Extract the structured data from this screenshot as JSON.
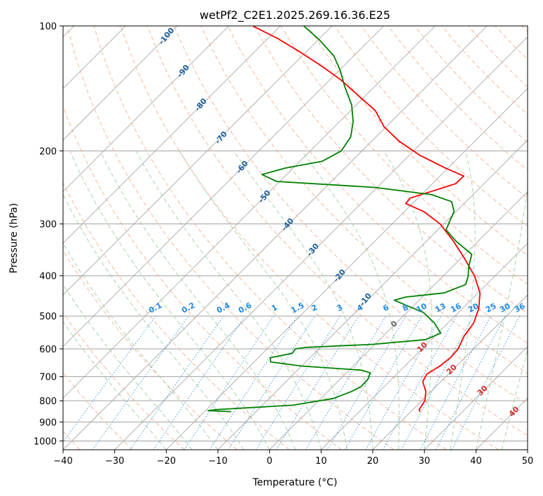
{
  "chart_data": {
    "type": "line",
    "title": "wetPf2_C2E1.2025.269.16.36.E25",
    "xlabel": "Temperature (°C)",
    "ylabel": "Pressure (hPa)",
    "xlim": [
      -40,
      50
    ],
    "ylim": [
      1050,
      100
    ],
    "y_scale": "log",
    "grid": true,
    "x_ticks": [
      -40,
      -30,
      -20,
      -10,
      0,
      10,
      20,
      30,
      40,
      50
    ],
    "y_ticks": [
      100,
      200,
      300,
      400,
      500,
      600,
      700,
      800,
      900,
      1000
    ],
    "series": [
      {
        "color": "#ff0000",
        "points": [
          {
            "p": 850,
            "t": 21.8
          },
          {
            "p": 840,
            "t": 21.2
          },
          {
            "p": 800,
            "t": 20.6
          },
          {
            "p": 760,
            "t": 19.0
          },
          {
            "p": 720,
            "t": 16.5
          },
          {
            "p": 690,
            "t": 15.8
          },
          {
            "p": 660,
            "t": 16.8
          },
          {
            "p": 630,
            "t": 17.2
          },
          {
            "p": 600,
            "t": 17.0
          },
          {
            "p": 560,
            "t": 15.7
          },
          {
            "p": 520,
            "t": 15.0
          },
          {
            "p": 480,
            "t": 13.2
          },
          {
            "p": 440,
            "t": 10.4
          },
          {
            "p": 400,
            "t": 6.0
          },
          {
            "p": 360,
            "t": 0.2
          },
          {
            "p": 330,
            "t": -4.8
          },
          {
            "p": 300,
            "t": -10.7
          },
          {
            "p": 280,
            "t": -16.3
          },
          {
            "p": 268,
            "t": -21.3
          },
          {
            "p": 260,
            "t": -21.5
          },
          {
            "p": 250,
            "t": -18.6
          },
          {
            "p": 240,
            "t": -15.5
          },
          {
            "p": 230,
            "t": -15.4
          },
          {
            "p": 220,
            "t": -20.5
          },
          {
            "p": 205,
            "t": -27.9
          },
          {
            "p": 190,
            "t": -34.5
          },
          {
            "p": 175,
            "t": -40.4
          },
          {
            "p": 160,
            "t": -45.2
          },
          {
            "p": 148,
            "t": -51.0
          },
          {
            "p": 135,
            "t": -57.8
          },
          {
            "p": 125,
            "t": -64.2
          },
          {
            "p": 115,
            "t": -71.6
          },
          {
            "p": 107,
            "t": -78.3
          },
          {
            "p": 100,
            "t": -85.4
          }
        ]
      },
      {
        "color": "#008000",
        "points": [
          {
            "p": 850,
            "t": -14.8
          },
          {
            "p": 845,
            "t": -19.5
          },
          {
            "p": 840,
            "t": -18.0
          },
          {
            "p": 820,
            "t": -4.1
          },
          {
            "p": 790,
            "t": 2.4
          },
          {
            "p": 760,
            "t": 4.6
          },
          {
            "p": 740,
            "t": 5.5
          },
          {
            "p": 710,
            "t": 5.4
          },
          {
            "p": 685,
            "t": 4.6
          },
          {
            "p": 675,
            "t": 2.3
          },
          {
            "p": 660,
            "t": -10.0
          },
          {
            "p": 645,
            "t": -16.8
          },
          {
            "p": 630,
            "t": -17.7
          },
          {
            "p": 615,
            "t": -14.3
          },
          {
            "p": 600,
            "t": -14.5
          },
          {
            "p": 595,
            "t": -12.8
          },
          {
            "p": 585,
            "t": -0.4
          },
          {
            "p": 570,
            "t": 8.9
          },
          {
            "p": 550,
            "t": 10.6
          },
          {
            "p": 520,
            "t": 7.4
          },
          {
            "p": 490,
            "t": 3.2
          },
          {
            "p": 470,
            "t": -1.8
          },
          {
            "p": 458,
            "t": -4.8
          },
          {
            "p": 450,
            "t": -3.2
          },
          {
            "p": 440,
            "t": 3.4
          },
          {
            "p": 420,
            "t": 6.0
          },
          {
            "p": 400,
            "t": 4.8
          },
          {
            "p": 380,
            "t": 3.1
          },
          {
            "p": 355,
            "t": 1.3
          },
          {
            "p": 330,
            "t": -4.3
          },
          {
            "p": 310,
            "t": -8.4
          },
          {
            "p": 295,
            "t": -9.4
          },
          {
            "p": 280,
            "t": -10.4
          },
          {
            "p": 265,
            "t": -12.8
          },
          {
            "p": 255,
            "t": -18.0
          },
          {
            "p": 245,
            "t": -30.3
          },
          {
            "p": 237,
            "t": -50.6
          },
          {
            "p": 228,
            "t": -54.8
          },
          {
            "p": 220,
            "t": -51.5
          },
          {
            "p": 212,
            "t": -45.7
          },
          {
            "p": 200,
            "t": -44.0
          },
          {
            "p": 185,
            "t": -44.9
          },
          {
            "p": 170,
            "t": -47.4
          },
          {
            "p": 155,
            "t": -50.9
          },
          {
            "p": 140,
            "t": -55.8
          },
          {
            "p": 128,
            "t": -59.8
          },
          {
            "p": 118,
            "t": -63.9
          },
          {
            "p": 108,
            "t": -69.8
          },
          {
            "p": 100,
            "t": -75.5
          }
        ]
      }
    ],
    "dry_adiabat_labels": [
      "-100",
      "-90",
      "-80",
      "-70",
      "-60",
      "-50",
      "-40",
      "-30",
      "-20",
      "-10"
    ],
    "moist_adiabat_labels": [
      "0",
      "10",
      "20",
      "30",
      "40"
    ],
    "mixing_ratio_labels": [
      "0.1",
      "0.2",
      "0.4",
      "0.6",
      "1",
      "1.5",
      "2",
      "3",
      "4",
      "6",
      "8",
      "10",
      "13",
      "16",
      "20",
      "25",
      "30",
      "36"
    ],
    "colors": {
      "temperature": "#ff0000",
      "dewpoint": "#008000",
      "isotherm": "#a0a0a0",
      "dry_adiabat": "#f4a582",
      "moist_adiabat": "#9fcf9f",
      "mixing_ratio": "#1e88e5",
      "dry_label": "#1f5f9a",
      "moist_label": "#d32f2f",
      "mixing_label": "#1e88e5"
    }
  }
}
